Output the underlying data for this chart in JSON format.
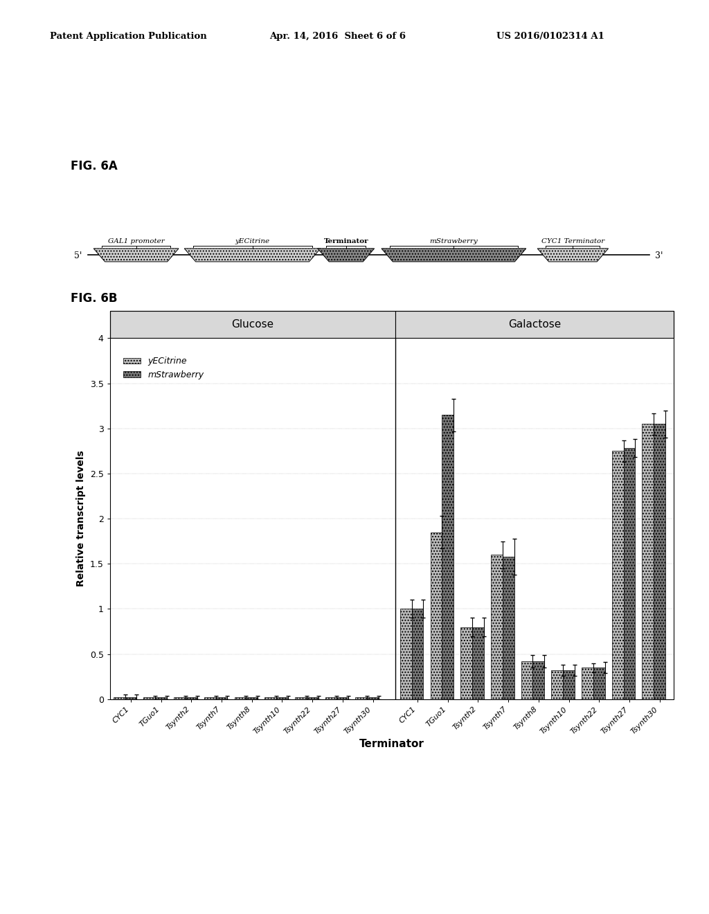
{
  "header_left": "Patent Application Publication",
  "header_mid": "Apr. 14, 2016  Sheet 6 of 6",
  "header_right": "US 2016/0102314 A1",
  "fig6a_label": "FIG. 6A",
  "fig6b_label": "FIG. 6B",
  "diagram_labels": [
    "GAL1 promoter",
    "yECitrine",
    "Terminator",
    "mStrawberry",
    "CYC1 Terminator"
  ],
  "diagram_label_bold": [
    false,
    false,
    true,
    false,
    false
  ],
  "diagram_label_italic": [
    true,
    true,
    false,
    true,
    true
  ],
  "diagram_5prime": "5'",
  "diagram_3prime": "3'",
  "glucose_label": "Glucose",
  "galactose_label": "Galactose",
  "x_label": "Terminator",
  "y_label": "Relative transcript levels",
  "terminators": [
    "CYC1",
    "TGuo1",
    "Tsynth2",
    "Tsynth7",
    "Tsynth8",
    "Tsynth10",
    "Tsynth22",
    "Tsynth27",
    "Tsynth30"
  ],
  "legend_yCitrine": "yECitrine",
  "legend_mStrawberry": "mStrawberry",
  "glucose_yCitrine": [
    0.02,
    0.02,
    0.02,
    0.02,
    0.02,
    0.02,
    0.02,
    0.02,
    0.02
  ],
  "glucose_mStrawberry": [
    0.02,
    0.02,
    0.02,
    0.02,
    0.02,
    0.02,
    0.02,
    0.02,
    0.02
  ],
  "galactose_yCitrine": [
    1.0,
    1.85,
    0.8,
    1.6,
    0.42,
    0.32,
    0.35,
    2.75,
    3.05
  ],
  "galactose_mStrawberry": [
    1.0,
    3.15,
    0.8,
    1.58,
    0.42,
    0.32,
    0.35,
    2.78,
    3.05
  ],
  "glucose_yCitrine_err": [
    0.03,
    0.02,
    0.02,
    0.02,
    0.02,
    0.02,
    0.02,
    0.02,
    0.02
  ],
  "glucose_mStrawberry_err": [
    0.03,
    0.02,
    0.02,
    0.02,
    0.02,
    0.02,
    0.02,
    0.02,
    0.02
  ],
  "galactose_yCitrine_err": [
    0.1,
    0.18,
    0.1,
    0.15,
    0.07,
    0.06,
    0.05,
    0.12,
    0.12
  ],
  "galactose_mStrawberry_err": [
    0.1,
    0.18,
    0.1,
    0.2,
    0.07,
    0.06,
    0.06,
    0.1,
    0.15
  ],
  "hatch_yCitrine": "....",
  "hatch_mStrawberry": "xxxx",
  "bar_facecolor": "#cccccc",
  "ylim": [
    0,
    4
  ],
  "yticks": [
    0,
    0.5,
    1.0,
    1.5,
    2.0,
    2.5,
    3.0,
    3.5,
    4.0
  ],
  "background_color": "#ffffff",
  "header_bg": "#d8d8d8"
}
